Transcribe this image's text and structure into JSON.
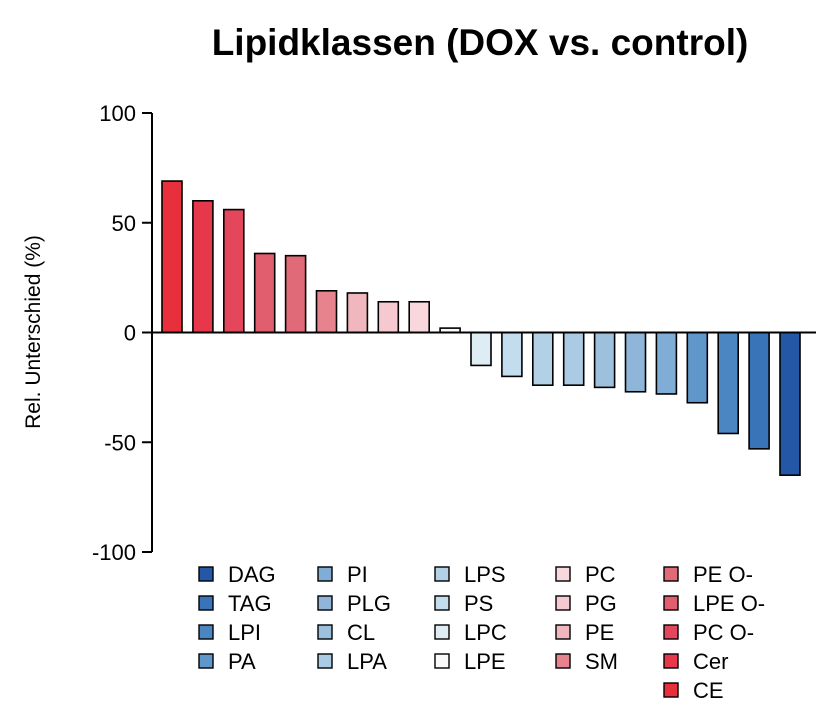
{
  "chart_data": {
    "type": "bar",
    "title": "Lipidklassen (DOX vs. control)",
    "xlabel": "",
    "ylabel": "Rel. Unterschied (%)",
    "ylim": [
      -100,
      100
    ],
    "yticks": [
      -100,
      -50,
      0,
      50,
      100
    ],
    "ytick_labels": [
      "-100",
      "-50",
      "0",
      "50",
      "100"
    ],
    "legend_position": "bottom",
    "categories": [
      "CE",
      "Cer",
      "PC O-",
      "LPE O-",
      "PE O-",
      "SM",
      "PE",
      "PG",
      "PC",
      "LPE",
      "LPC",
      "PS",
      "LPS",
      "LPA",
      "CL",
      "PLG",
      "PI",
      "PA",
      "LPI",
      "TAG",
      "DAG"
    ],
    "values": [
      69,
      60,
      56,
      36,
      35,
      19,
      18,
      14,
      14,
      2,
      -15,
      -20,
      -24,
      -24,
      -25,
      -27,
      -28,
      -32,
      -46,
      -53,
      -65
    ],
    "colors": {
      "CE": "#e8303c",
      "Cer": "#e6384a",
      "PC O-": "#e4475b",
      "LPE O-": "#e15e6e",
      "PE O-": "#e06a78",
      "SM": "#e6838d",
      "PE": "#f1b7bf",
      "PG": "#f5c9cf",
      "PC": "#f8d8dc",
      "LPE": "#fafafa",
      "LPC": "#deecf4",
      "PS": "#c3dcee",
      "LPS": "#b3d1e6",
      "LPA": "#aacbe3",
      "CL": "#9dc0dd",
      "PLG": "#8fb6d8",
      "PI": "#80add5",
      "PA": "#5f97cb",
      "LPI": "#4b86c3",
      "TAG": "#3a74b8",
      "DAG": "#2458a6"
    },
    "legend_columns": [
      [
        "DAG",
        "TAG",
        "LPI",
        "PA"
      ],
      [
        "PI",
        "PLG",
        "CL",
        "LPA"
      ],
      [
        "LPS",
        "PS",
        "LPC",
        "LPE"
      ],
      [
        "PC",
        "PG",
        "PE",
        "SM"
      ],
      [
        "PE O-",
        "LPE O-",
        "PC O-",
        "Cer",
        "CE"
      ]
    ]
  }
}
